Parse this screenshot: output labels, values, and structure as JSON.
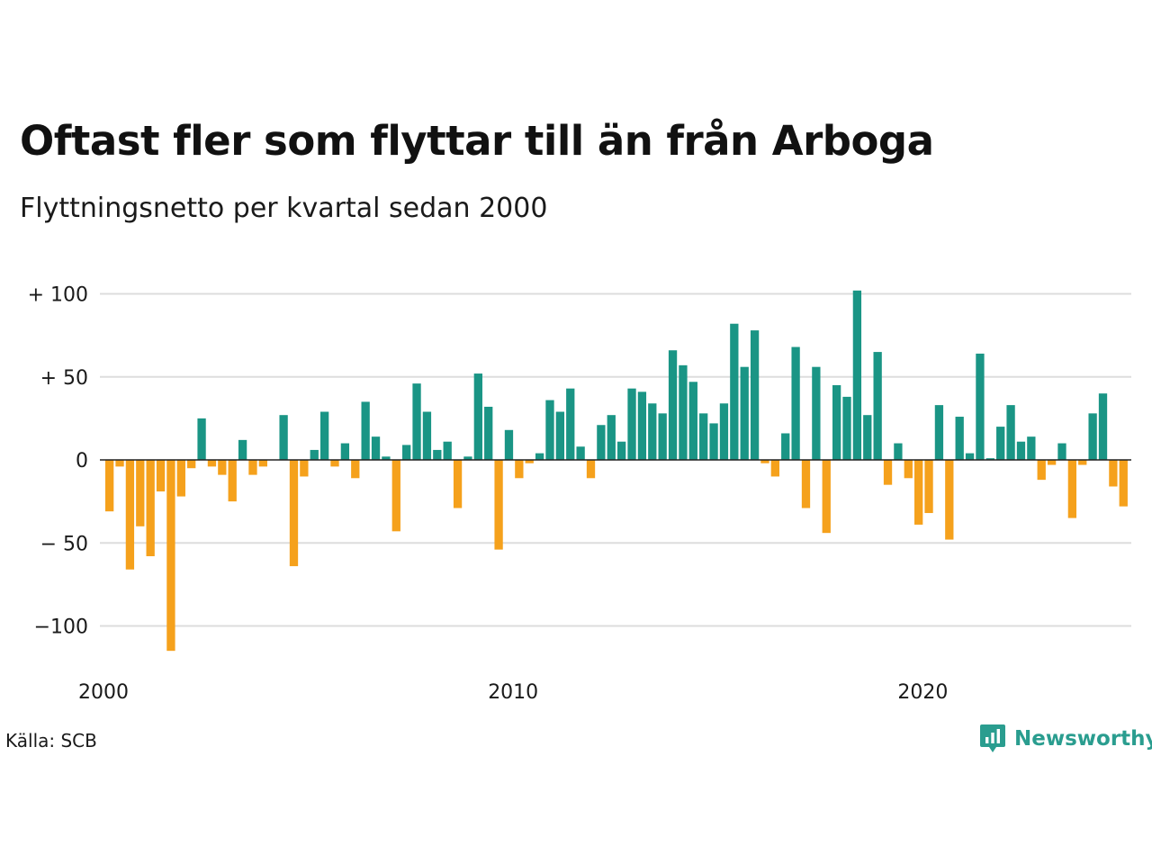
{
  "header": {
    "title": "Oftast fler som flyttar till än från Arboga",
    "subtitle": "Flyttningsnetto per kvartal sedan 2000"
  },
  "footer": {
    "source": "Källa: SCB",
    "brand": "Newsworthy",
    "brand_icon": "newsworthy-logo-icon"
  },
  "colors": {
    "positive": "#1a9585",
    "negative": "#f5a11c",
    "grid": "#dddddd",
    "zero_line": "#222222",
    "brand": "#2a9d8f"
  },
  "chart_data": {
    "type": "bar",
    "title": "Oftast fler som flyttar till än från Arboga",
    "subtitle": "Flyttningsnetto per kvartal sedan 2000",
    "xlabel": "",
    "ylabel": "",
    "ylim": [
      -120,
      105
    ],
    "y_ticks": [
      100,
      50,
      0,
      -50,
      -100
    ],
    "y_tick_labels": [
      "+ 100",
      "+  50",
      "0",
      "− 50",
      "−100"
    ],
    "x_ticks": [
      {
        "label": "2000",
        "index": 0
      },
      {
        "label": "2010",
        "index": 40
      },
      {
        "label": "2020",
        "index": 80
      }
    ],
    "grid": true,
    "legend": "none",
    "start_quarter": "2000 Q1",
    "values": [
      -31,
      -4,
      -66,
      -40,
      -58,
      -19,
      -115,
      -22,
      -5,
      25,
      -4,
      -9,
      -25,
      12,
      -9,
      -4,
      0,
      27,
      -64,
      -10,
      6,
      29,
      -4,
      10,
      -11,
      35,
      14,
      2,
      -43,
      9,
      46,
      29,
      6,
      11,
      -29,
      2,
      52,
      32,
      -54,
      18,
      -11,
      -2,
      4,
      36,
      29,
      43,
      8,
      -11,
      21,
      27,
      11,
      43,
      41,
      34,
      28,
      66,
      57,
      47,
      28,
      22,
      34,
      82,
      56,
      78,
      -2,
      -10,
      16,
      68,
      -29,
      56,
      -44,
      45,
      38,
      102,
      27,
      65,
      -15,
      10,
      -11,
      -39,
      -32,
      33,
      -48,
      26,
      4,
      64,
      1,
      20,
      33,
      11,
      14,
      -12,
      -3,
      10,
      -35,
      -3,
      28,
      40,
      -16,
      -28
    ]
  }
}
